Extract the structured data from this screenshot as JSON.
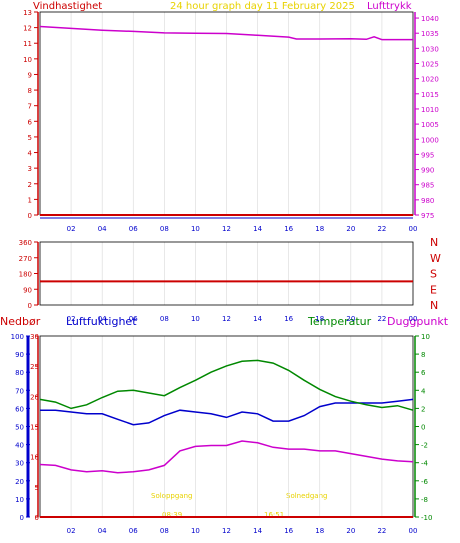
{
  "colors": {
    "wind": "#cc0000",
    "pressure": "#cc00cc",
    "title": "#e8d200",
    "direction": "#cc0000",
    "temperature": "#008800",
    "humidity": "#0000cc",
    "dewpoint": "#cc00cc",
    "rain": "#cc0000",
    "sun": "#e8d200",
    "blueline": "#0000cc",
    "grid": "#d8d8d8",
    "frame": "#000000"
  },
  "header": {
    "wind_label": "Vindhastighet",
    "title": "24 hour graph day   11 February 2025",
    "pressure_label": "Lufttrykk"
  },
  "lower_header": {
    "rain_label": "Nedbør",
    "humidity_label": "Luftfuktighet",
    "temperature_label": "Temperatur",
    "dewpoint_label": "Duggpunkt"
  },
  "sun": {
    "sunrise_label": "Soloppgang",
    "sunset_label": "Solnedgang",
    "sunrise_time": "08:39",
    "sunset_time": "16:51"
  },
  "chart_data": [
    {
      "type": "line",
      "name": "wind-pressure",
      "x_ticks": [
        "02",
        "04",
        "06",
        "08",
        "10",
        "12",
        "14",
        "16",
        "18",
        "20",
        "22",
        "00"
      ],
      "y_left_ticks": [
        "0",
        "1",
        "2",
        "3",
        "4",
        "5",
        "6",
        "7",
        "8",
        "9",
        "10",
        "11",
        "12",
        "13"
      ],
      "y_left_range": [
        0,
        13
      ],
      "y_right_ticks": [
        "975",
        "980",
        "985",
        "990",
        "995",
        "1000",
        "1005",
        "1010",
        "1015",
        "1020",
        "1025",
        "1030",
        "1035",
        "1040"
      ],
      "y_right_range": [
        975,
        1042
      ],
      "series": [
        {
          "name": "Vindhastighet",
          "axis": "left",
          "x": [
            0,
            24
          ],
          "values": [
            0,
            0
          ]
        },
        {
          "name": "Lufttrykk",
          "axis": "right",
          "x": [
            0,
            2,
            4,
            6,
            8,
            10,
            12,
            14,
            16,
            16.5,
            18,
            20,
            21,
            21.5,
            22,
            24
          ],
          "values": [
            1037.2,
            1036.6,
            1036.0,
            1035.6,
            1035.1,
            1035.0,
            1034.9,
            1034.3,
            1033.7,
            1033.1,
            1033.1,
            1033.2,
            1033.0,
            1033.8,
            1032.9,
            1032.9
          ]
        }
      ]
    },
    {
      "type": "line",
      "name": "wind-direction",
      "x_ticks": [
        "02",
        "04",
        "06",
        "08",
        "10",
        "12",
        "14",
        "16",
        "18",
        "20",
        "22",
        "00"
      ],
      "y_left_ticks": [
        "0",
        "90",
        "180",
        "270",
        "360"
      ],
      "y_left_range": [
        0,
        360
      ],
      "y_right_ticks": [
        "N",
        "E",
        "S",
        "W",
        "N"
      ],
      "series": [
        {
          "name": "Vindretning",
          "x": [
            0,
            24
          ],
          "values": [
            135,
            135
          ]
        }
      ]
    },
    {
      "type": "line",
      "name": "temperature-humidity",
      "x_ticks": [
        "02",
        "04",
        "06",
        "08",
        "10",
        "12",
        "14",
        "16",
        "18",
        "20",
        "22",
        "00"
      ],
      "y_far_left_ticks": [
        "0",
        "10",
        "20",
        "30",
        "40",
        "50",
        "60",
        "70",
        "80",
        "90",
        "100"
      ],
      "y_far_left_range": [
        0,
        100
      ],
      "y_left_ticks": [
        "0",
        "5",
        "10",
        "15",
        "20",
        "25",
        "30"
      ],
      "y_left_range": [
        0,
        30
      ],
      "y_right_ticks": [
        "-10",
        "-8",
        "-6",
        "-4",
        "-2",
        "0",
        "2",
        "4",
        "6",
        "8",
        "10"
      ],
      "y_right_range": [
        -10,
        10
      ],
      "series": [
        {
          "name": "Nedbør",
          "axis": "left",
          "x": [
            0,
            24
          ],
          "values": [
            0,
            0
          ]
        },
        {
          "name": "Luftfuktighet",
          "axis": "far_left",
          "x": [
            0,
            1,
            2,
            3,
            4,
            5,
            6,
            7,
            8,
            9,
            10,
            11,
            12,
            13,
            14,
            15,
            16,
            17,
            18,
            19,
            20,
            21,
            22,
            23,
            24
          ],
          "values": [
            59,
            59,
            58,
            57,
            57,
            54,
            51,
            52,
            56,
            59,
            58,
            57,
            55,
            58,
            57,
            53,
            53,
            56,
            61,
            63,
            63,
            63,
            63,
            64,
            65
          ]
        },
        {
          "name": "Temperatur",
          "axis": "right",
          "x": [
            0,
            1,
            2,
            3,
            4,
            5,
            6,
            7,
            8,
            9,
            10,
            11,
            12,
            13,
            14,
            15,
            16,
            17,
            18,
            19,
            20,
            21,
            22,
            23,
            24
          ],
          "values": [
            3.0,
            2.7,
            2.0,
            2.4,
            3.2,
            3.9,
            4.0,
            3.7,
            3.4,
            4.3,
            5.1,
            6.0,
            6.7,
            7.2,
            7.3,
            7.0,
            6.2,
            5.1,
            4.1,
            3.3,
            2.8,
            2.4,
            2.1,
            2.3,
            1.8
          ]
        },
        {
          "name": "Duggpunkt",
          "axis": "right",
          "x": [
            0,
            1,
            2,
            3,
            4,
            5,
            6,
            7,
            8,
            9,
            10,
            11,
            12,
            13,
            14,
            15,
            16,
            17,
            18,
            19,
            20,
            21,
            22,
            23,
            24
          ],
          "values": [
            -4.2,
            -4.3,
            -4.8,
            -5.0,
            -4.9,
            -5.1,
            -5.0,
            -4.8,
            -4.3,
            -2.7,
            -2.2,
            -2.1,
            -2.1,
            -1.6,
            -1.8,
            -2.3,
            -2.5,
            -2.5,
            -2.7,
            -2.7,
            -3.0,
            -3.3,
            -3.6,
            -3.8,
            -3.9
          ]
        }
      ]
    }
  ]
}
